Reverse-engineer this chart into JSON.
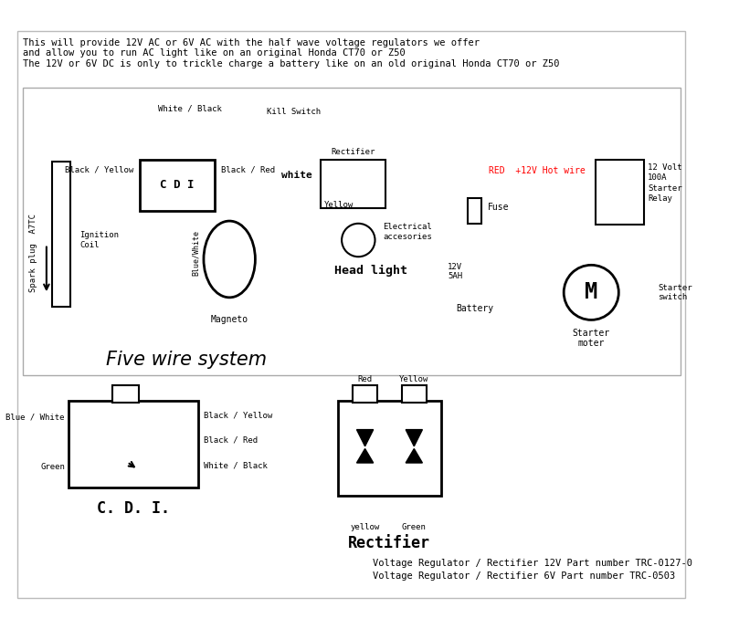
{
  "title_text": "This will provide 12V AC or 6V AC with the half wave voltage regulators we offer\nand allow you to run AC light like on an original Honda CT70 or Z50\nThe 12V or 6V DC is only to trickle charge a battery like on an old original Honda CT70 or Z50",
  "five_wire_label": "Five wire system",
  "cdi_label": "C. D. I.",
  "rectifier_label": "Rectifier",
  "bottom_text1": "Voltage Regulator / Rectifier 12V Part number TRC-0127-0",
  "bottom_text2": "Voltage Regulator / Rectifier 6V Part number TRC-0503",
  "bg_color": "#ffffff",
  "border_color": "#000000",
  "diagram_border": "#aaaaaa"
}
